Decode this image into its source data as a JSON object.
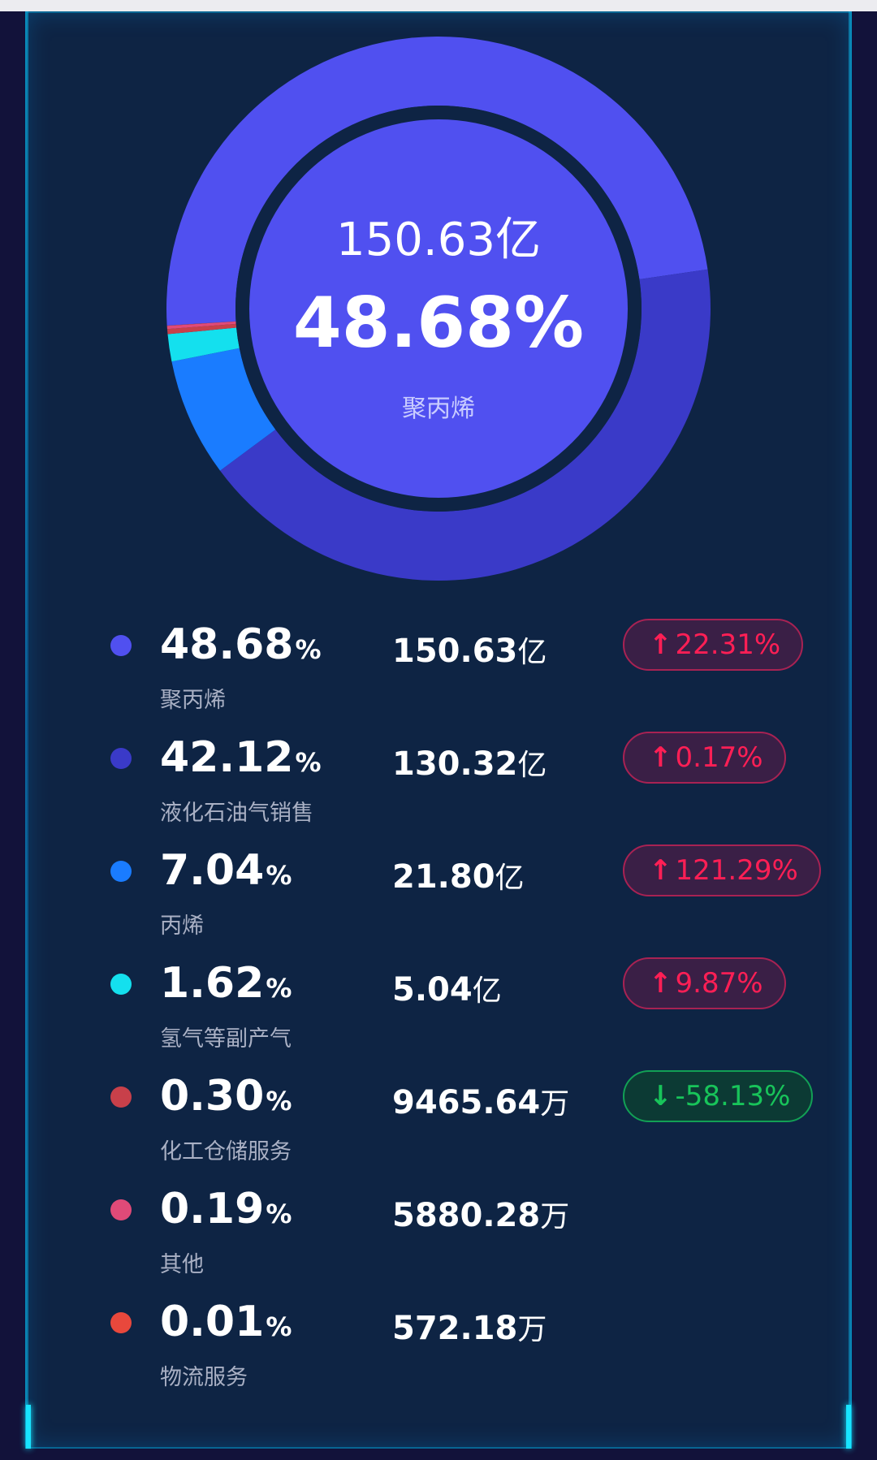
{
  "chart_data": {
    "type": "pie",
    "center": {
      "value": "150.63亿",
      "percent": "48.68%",
      "name": "聚丙烯"
    },
    "series": [
      {
        "name": "聚丙烯",
        "percent": 48.68,
        "percent_text": "48.68",
        "amount": "150.63",
        "amount_unit": "亿",
        "change": "22.31%",
        "direction": "up",
        "color": "#5050f0"
      },
      {
        "name": "液化石油气销售",
        "percent": 42.12,
        "percent_text": "42.12",
        "amount": "130.32",
        "amount_unit": "亿",
        "change": "0.17%",
        "direction": "up",
        "color": "#3a3ac8"
      },
      {
        "name": "丙烯",
        "percent": 7.04,
        "percent_text": "7.04",
        "amount": "21.80",
        "amount_unit": "亿",
        "change": "121.29%",
        "direction": "up",
        "color": "#1a7cff"
      },
      {
        "name": "氢气等副产气",
        "percent": 1.62,
        "percent_text": "1.62",
        "amount": "5.04",
        "amount_unit": "亿",
        "change": "9.87%",
        "direction": "up",
        "color": "#14e0ee"
      },
      {
        "name": "化工仓储服务",
        "percent": 0.3,
        "percent_text": "0.30",
        "amount": "9465.64",
        "amount_unit": "万",
        "change": "-58.13%",
        "direction": "down",
        "color": "#c8404a"
      },
      {
        "name": "其他",
        "percent": 0.19,
        "percent_text": "0.19",
        "amount": "5880.28",
        "amount_unit": "万",
        "change": "",
        "direction": "",
        "color": "#e04a78"
      },
      {
        "name": "物流服务",
        "percent": 0.01,
        "percent_text": "0.01",
        "amount": "572.18",
        "amount_unit": "万",
        "change": "",
        "direction": "",
        "color": "#e8483c"
      }
    ],
    "percent_unit": "%",
    "colors": {
      "background": "#0e2444",
      "up": "#ff1f55",
      "down": "#18c45a",
      "inner_circle": "#5050f0"
    }
  }
}
